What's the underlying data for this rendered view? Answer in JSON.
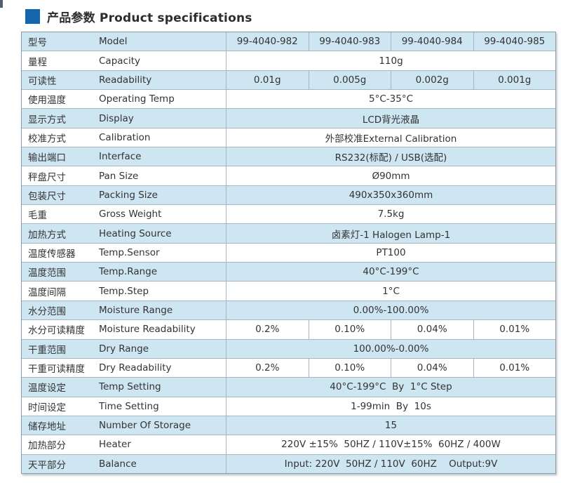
{
  "header": {
    "title": "产品参数 Product specifications",
    "accent_color": "#1566ad"
  },
  "colors": {
    "row_alt_blue": "#cee5f2",
    "row_white": "#ffffff",
    "grid_line": "#a3b6c2",
    "outer_border": "#8a9aa6",
    "text": "#333333"
  },
  "table": {
    "rows": [
      {
        "zh": "型号",
        "en": "Model",
        "values": [
          "99-4040-982",
          "99-4040-983",
          "99-4040-984",
          "99-4040-985"
        ]
      },
      {
        "zh": "量程",
        "en": "Capacity",
        "value": "110g"
      },
      {
        "zh": "可读性",
        "en": "Readability",
        "values": [
          "0.01g",
          "0.005g",
          "0.002g",
          "0.001g"
        ]
      },
      {
        "zh": "使用温度",
        "en": "Operating Temp",
        "value": "5°C-35°C"
      },
      {
        "zh": "显示方式",
        "en": "Display",
        "value": "LCD背光液晶"
      },
      {
        "zh": "校准方式",
        "en": "Calibration",
        "value": "外部校准External Calibration"
      },
      {
        "zh": "输出端口",
        "en": "Interface",
        "value": "RS232(标配) / USB(选配)"
      },
      {
        "zh": "秤盘尺寸",
        "en": "Pan Size",
        "value": "Ø90mm"
      },
      {
        "zh": "包装尺寸",
        "en": "Packing Size",
        "value": "490x350x360mm"
      },
      {
        "zh": "毛重",
        "en": "Gross Weight",
        "value": "7.5kg"
      },
      {
        "zh": "加热方式",
        "en": "Heating Source",
        "value": "卤素灯-1 Halogen Lamp-1"
      },
      {
        "zh": "温度传感器",
        "en": "Temp.Sensor",
        "value": "PT100"
      },
      {
        "zh": "温度范围",
        "en": "Temp.Range",
        "value": "40°C-199°C"
      },
      {
        "zh": "温度间隔",
        "en": "Temp.Step",
        "value": "1°C"
      },
      {
        "zh": "水分范围",
        "en": "Moisture Range",
        "value": "0.00%-100.00%"
      },
      {
        "zh": "水分可读精度",
        "en": "Moisture Readability",
        "values": [
          "0.2%",
          "0.10%",
          "0.04%",
          "0.01%"
        ]
      },
      {
        "zh": "干重范围",
        "en": "Dry Range",
        "value": "100.00%-0.00%"
      },
      {
        "zh": "干重可读精度",
        "en": "Dry Readability",
        "values": [
          "0.2%",
          "0.10%",
          "0.04%",
          "0.01%"
        ]
      },
      {
        "zh": "温度设定",
        "en": "Temp Setting",
        "value": "40°C-199°C  By  1°C Step"
      },
      {
        "zh": "时间设定",
        "en": "Time Setting",
        "value": "1-99min  By  10s"
      },
      {
        "zh": "储存地址",
        "en": "Number Of Storage",
        "value": "15"
      },
      {
        "zh": "加热部分",
        "en": "Heater",
        "value": "220V ±15%  50HZ / 110V±15%  60HZ / 400W"
      },
      {
        "zh": "天平部分",
        "en": "Balance",
        "value": "Input: 220V  50HZ / 110V  60HZ    Output:9V"
      }
    ]
  }
}
